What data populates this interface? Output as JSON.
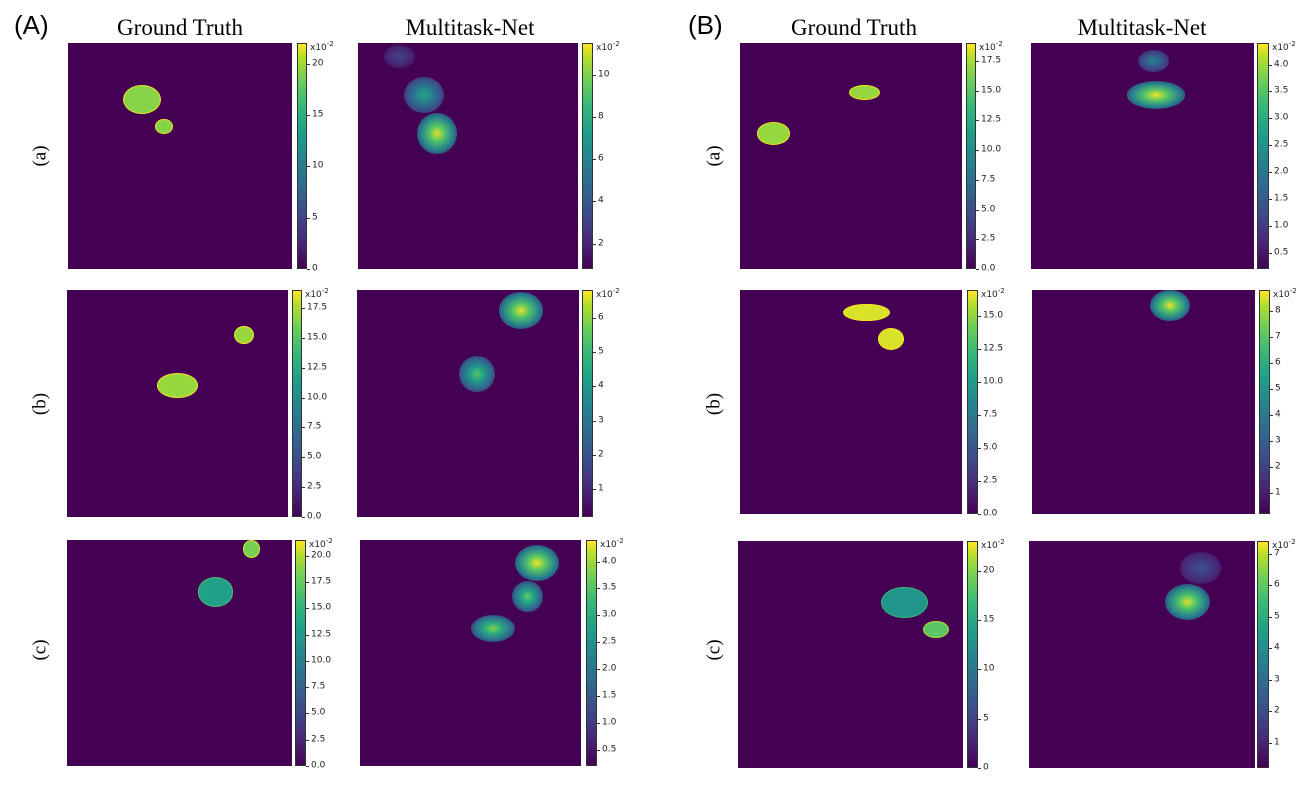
{
  "panels": {
    "A": {
      "label": "(A)"
    },
    "B": {
      "label": "(B)"
    }
  },
  "columns": {
    "ground_truth": "Ground Truth",
    "multitask_net": "Multitask-Net"
  },
  "rows": [
    "(a)",
    "(b)",
    "(c)"
  ],
  "colormap": "viridis",
  "colors": {
    "background": "#440154",
    "low": "#440154",
    "mid": "#21918c",
    "high": "#fde725",
    "gt_blob": "#4cc26c"
  },
  "colorbar_exponent": "x10",
  "colorbar_exponent_power": "-2",
  "chart_data": [
    {
      "type": "heatmap",
      "panel": "A",
      "row": "(a)",
      "column": "Ground Truth",
      "colorbar_ticks": [
        "0",
        "5",
        "10",
        "15",
        "20"
      ],
      "colorbar_values": [
        0,
        5,
        10,
        15,
        20
      ],
      "colorbar_range": [
        0,
        22
      ],
      "blobs": [
        {
          "x": 0.33,
          "y": 0.25,
          "rx": 0.08,
          "ry": 0.06,
          "value": 18
        },
        {
          "x": 0.43,
          "y": 0.37,
          "rx": 0.035,
          "ry": 0.03,
          "value": 18
        }
      ]
    },
    {
      "type": "heatmap",
      "panel": "A",
      "row": "(a)",
      "column": "Multitask-Net",
      "colorbar_ticks": [
        "2",
        "4",
        "6",
        "8",
        "10"
      ],
      "colorbar_values": [
        2,
        4,
        6,
        8,
        10
      ],
      "colorbar_range": [
        0.8,
        11.5
      ],
      "blobs": [
        {
          "x": 0.19,
          "y": 0.06,
          "rx": 0.07,
          "ry": 0.05,
          "value": 3
        },
        {
          "x": 0.3,
          "y": 0.23,
          "rx": 0.09,
          "ry": 0.08,
          "value": 7
        },
        {
          "x": 0.36,
          "y": 0.4,
          "rx": 0.09,
          "ry": 0.09,
          "value": 11
        }
      ]
    },
    {
      "type": "heatmap",
      "panel": "A",
      "row": "(b)",
      "column": "Ground Truth",
      "colorbar_ticks": [
        "0.0",
        "2.5",
        "5.0",
        "7.5",
        "10.0",
        "12.5",
        "15.0",
        "17.5"
      ],
      "colorbar_values": [
        0,
        2.5,
        5,
        7.5,
        10,
        12.5,
        15,
        17.5
      ],
      "colorbar_range": [
        0,
        19
      ],
      "blobs": [
        {
          "x": 0.8,
          "y": 0.2,
          "rx": 0.04,
          "ry": 0.035,
          "value": 16
        },
        {
          "x": 0.5,
          "y": 0.42,
          "rx": 0.09,
          "ry": 0.05,
          "value": 16
        }
      ]
    },
    {
      "type": "heatmap",
      "panel": "A",
      "row": "(b)",
      "column": "Multitask-Net",
      "colorbar_ticks": [
        "1",
        "2",
        "3",
        "4",
        "5",
        "6"
      ],
      "colorbar_values": [
        1,
        2,
        3,
        4,
        5,
        6
      ],
      "colorbar_range": [
        0.2,
        6.8
      ],
      "blobs": [
        {
          "x": 0.74,
          "y": 0.09,
          "rx": 0.1,
          "ry": 0.08,
          "value": 6.5
        },
        {
          "x": 0.54,
          "y": 0.37,
          "rx": 0.08,
          "ry": 0.08,
          "value": 5
        }
      ]
    },
    {
      "type": "heatmap",
      "panel": "A",
      "row": "(c)",
      "column": "Ground Truth",
      "colorbar_ticks": [
        "0.0",
        "2.5",
        "5.0",
        "7.5",
        "10.0",
        "12.5",
        "15.0",
        "17.5",
        "20.0"
      ],
      "colorbar_values": [
        0,
        2.5,
        5,
        7.5,
        10,
        12.5,
        15,
        17.5,
        20
      ],
      "colorbar_range": [
        0,
        21.5
      ],
      "blobs": [
        {
          "x": 0.82,
          "y": 0.04,
          "rx": 0.035,
          "ry": 0.035,
          "value": 17
        },
        {
          "x": 0.66,
          "y": 0.23,
          "rx": 0.075,
          "ry": 0.06,
          "value": 12
        }
      ]
    },
    {
      "type": "heatmap",
      "panel": "A",
      "row": "(c)",
      "column": "Multitask-Net",
      "colorbar_ticks": [
        "0.5",
        "1.0",
        "1.5",
        "2.0",
        "2.5",
        "3.0",
        "3.5",
        "4.0"
      ],
      "colorbar_values": [
        0.5,
        1,
        1.5,
        2,
        2.5,
        3,
        3.5,
        4
      ],
      "colorbar_range": [
        0.2,
        4.4
      ],
      "blobs": [
        {
          "x": 0.8,
          "y": 0.1,
          "rx": 0.1,
          "ry": 0.08,
          "value": 4.3
        },
        {
          "x": 0.76,
          "y": 0.25,
          "rx": 0.07,
          "ry": 0.07,
          "value": 3.4
        },
        {
          "x": 0.6,
          "y": 0.39,
          "rx": 0.1,
          "ry": 0.06,
          "value": 3.6
        }
      ]
    },
    {
      "type": "heatmap",
      "panel": "B",
      "row": "(a)",
      "column": "Ground Truth",
      "colorbar_ticks": [
        "0.0",
        "2.5",
        "5.0",
        "7.5",
        "10.0",
        "12.5",
        "15.0",
        "17.5"
      ],
      "colorbar_values": [
        0,
        2.5,
        5,
        7.5,
        10,
        12.5,
        15,
        17.5
      ],
      "colorbar_range": [
        0,
        19
      ],
      "blobs": [
        {
          "x": 0.56,
          "y": 0.22,
          "rx": 0.065,
          "ry": 0.03,
          "value": 16
        },
        {
          "x": 0.15,
          "y": 0.4,
          "rx": 0.07,
          "ry": 0.045,
          "value": 16
        }
      ]
    },
    {
      "type": "heatmap",
      "panel": "B",
      "row": "(a)",
      "column": "Multitask-Net",
      "colorbar_ticks": [
        "0.5",
        "1.0",
        "1.5",
        "2.0",
        "2.5",
        "3.0",
        "3.5",
        "4.0"
      ],
      "colorbar_values": [
        0.5,
        1,
        1.5,
        2,
        2.5,
        3,
        3.5,
        4
      ],
      "colorbar_range": [
        0.2,
        4.4
      ],
      "blobs": [
        {
          "x": 0.55,
          "y": 0.08,
          "rx": 0.07,
          "ry": 0.05,
          "value": 2
        },
        {
          "x": 0.56,
          "y": 0.23,
          "rx": 0.13,
          "ry": 0.06,
          "value": 4.3
        }
      ]
    },
    {
      "type": "heatmap",
      "panel": "B",
      "row": "(b)",
      "column": "Ground Truth",
      "colorbar_ticks": [
        "0.0",
        "2.5",
        "5.0",
        "7.5",
        "10.0",
        "12.5",
        "15.0"
      ],
      "colorbar_values": [
        0,
        2.5,
        5,
        7.5,
        10,
        12.5,
        15
      ],
      "colorbar_range": [
        0,
        17
      ],
      "blobs": [
        {
          "x": 0.57,
          "y": 0.1,
          "rx": 0.1,
          "ry": 0.035,
          "value": 16
        },
        {
          "x": 0.68,
          "y": 0.22,
          "rx": 0.055,
          "ry": 0.045,
          "value": 16
        }
      ]
    },
    {
      "type": "heatmap",
      "panel": "B",
      "row": "(b)",
      "column": "Multitask-Net",
      "colorbar_ticks": [
        "1",
        "2",
        "3",
        "4",
        "5",
        "6",
        "7",
        "8"
      ],
      "colorbar_values": [
        1,
        2,
        3,
        4,
        5,
        6,
        7,
        8
      ],
      "colorbar_range": [
        0.2,
        8.8
      ],
      "blobs": [
        {
          "x": 0.62,
          "y": 0.07,
          "rx": 0.09,
          "ry": 0.07,
          "value": 8.5
        }
      ]
    },
    {
      "type": "heatmap",
      "panel": "B",
      "row": "(c)",
      "column": "Ground Truth",
      "colorbar_ticks": [
        "0",
        "5",
        "10",
        "15",
        "20"
      ],
      "colorbar_values": [
        0,
        5,
        10,
        15,
        20
      ],
      "colorbar_range": [
        0,
        23
      ],
      "blobs": [
        {
          "x": 0.74,
          "y": 0.27,
          "rx": 0.1,
          "ry": 0.065,
          "value": 12
        },
        {
          "x": 0.88,
          "y": 0.39,
          "rx": 0.055,
          "ry": 0.035,
          "value": 17
        }
      ]
    },
    {
      "type": "heatmap",
      "panel": "B",
      "row": "(c)",
      "column": "Multitask-Net",
      "colorbar_ticks": [
        "1",
        "2",
        "3",
        "4",
        "5",
        "6",
        "7"
      ],
      "colorbar_values": [
        1,
        2,
        3,
        4,
        5,
        6,
        7
      ],
      "colorbar_range": [
        0.2,
        7.4
      ],
      "blobs": [
        {
          "x": 0.76,
          "y": 0.12,
          "rx": 0.09,
          "ry": 0.07,
          "value": 2
        },
        {
          "x": 0.7,
          "y": 0.27,
          "rx": 0.1,
          "ry": 0.08,
          "value": 7
        }
      ]
    }
  ]
}
